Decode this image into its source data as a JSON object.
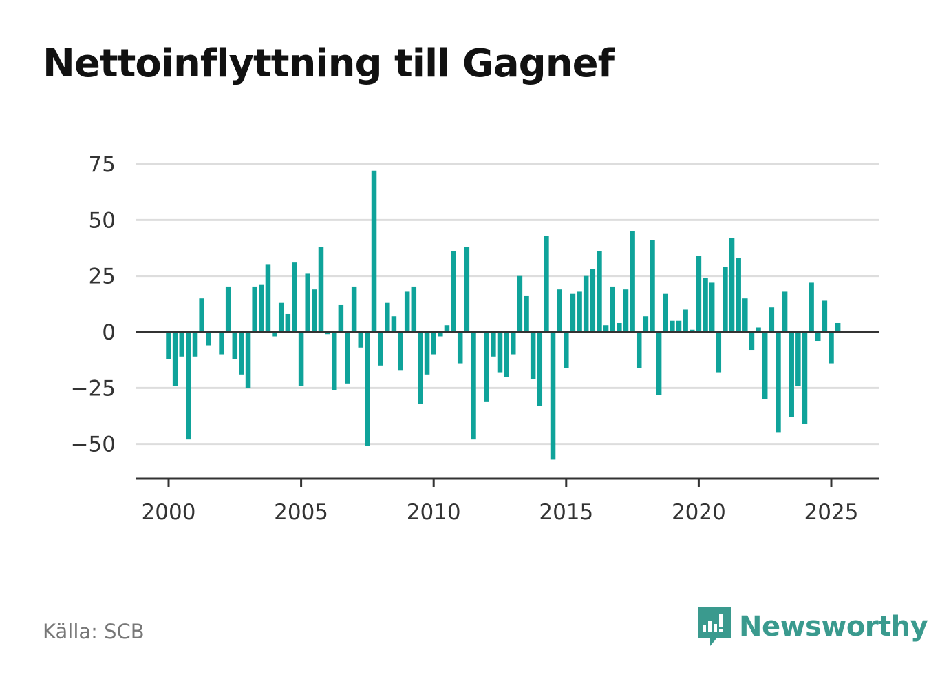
{
  "title": "Nettoinflyttning till Gagnef",
  "source": "Källa: SCB",
  "brand": {
    "name": "Newsworthy",
    "icon": "newsworthy-logo-icon",
    "color": "#3a9a8e"
  },
  "colors": {
    "bar": "#0fa39a",
    "grid": "#dddddd",
    "axis": "#333333"
  },
  "chart_data": {
    "type": "bar",
    "title": "Nettoinflyttning till Gagnef",
    "xlabel": "",
    "ylabel": "",
    "x_unit": "quarter",
    "ylim": [
      -65,
      78
    ],
    "xlim": [
      1999.75,
      2027.0
    ],
    "y_ticks": [
      75,
      50,
      25,
      0,
      -25,
      -50
    ],
    "y_tick_labels": [
      "75",
      "50",
      "25",
      "0",
      "−25",
      "−50"
    ],
    "x_ticks": [
      2000,
      2005,
      2010,
      2015,
      2020,
      2025
    ],
    "x_tick_labels": [
      "2000",
      "2005",
      "2010",
      "2015",
      "2020",
      "2025"
    ],
    "grid": true,
    "series": [
      {
        "start": "2000Q1",
        "values": [
          -12,
          -24,
          -11,
          -48,
          -11,
          15,
          -6,
          0,
          -10,
          20,
          -12,
          -19,
          -25,
          20,
          21,
          30,
          -2,
          13,
          8,
          31,
          -24,
          26,
          19,
          38,
          -1,
          -26,
          12,
          -23,
          20,
          -7,
          -51,
          72,
          -15,
          13,
          7,
          -17,
          18,
          20,
          -32,
          -19,
          -10,
          -2,
          3,
          36,
          -14,
          38,
          -48,
          0,
          -31,
          -11,
          -18,
          -20,
          -10,
          25,
          16,
          -21,
          -33,
          43,
          -57,
          19,
          -16,
          17,
          18,
          25,
          28,
          36,
          3,
          20,
          4,
          19,
          45,
          -16,
          7,
          41,
          -28,
          17,
          5,
          5,
          10,
          1,
          34,
          24,
          22,
          -18,
          29,
          42,
          33,
          15,
          -8,
          2,
          -30,
          11,
          -45,
          18,
          -38,
          -24,
          -41,
          22,
          -4,
          14,
          -14,
          4
        ]
      }
    ]
  }
}
